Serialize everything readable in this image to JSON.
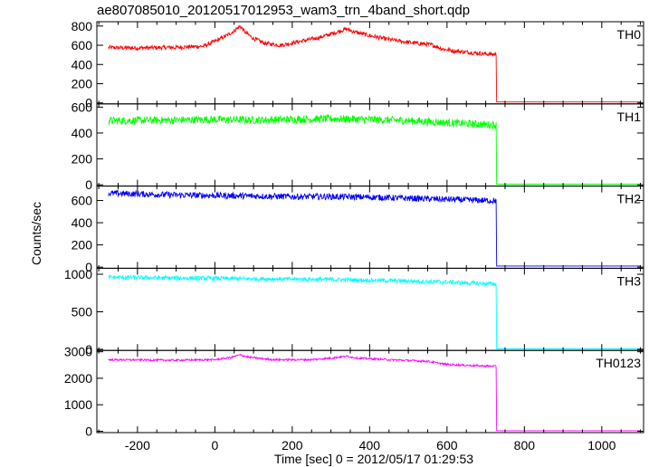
{
  "chart_data": {
    "type": "line",
    "title": "ae807085010_20120517012953_wam3_trn_4band_short.qdp",
    "xlabel": "Time [sec] 0 = 2012/05/17 01:29:53",
    "ylabel": "Counts/sec",
    "xlim": [
      -305,
      1108
    ],
    "xticks": [
      -200,
      0,
      200,
      400,
      600,
      800,
      1000
    ],
    "grid": false,
    "panels": [
      {
        "name": "TH0",
        "color": "#ff0000",
        "ylim": [
          -10,
          845
        ],
        "yticks": [
          0,
          200,
          400,
          600,
          800
        ],
        "noise": 22,
        "points": [
          [
            -275,
            575
          ],
          [
            -200,
            572
          ],
          [
            -100,
            578
          ],
          [
            -30,
            590
          ],
          [
            0,
            640
          ],
          [
            30,
            700
          ],
          [
            50,
            750
          ],
          [
            65,
            800
          ],
          [
            80,
            730
          ],
          [
            100,
            670
          ],
          [
            130,
            620
          ],
          [
            170,
            600
          ],
          [
            220,
            640
          ],
          [
            270,
            680
          ],
          [
            310,
            730
          ],
          [
            340,
            770
          ],
          [
            360,
            740
          ],
          [
            400,
            700
          ],
          [
            450,
            660
          ],
          [
            500,
            630
          ],
          [
            560,
            605
          ],
          [
            590,
            560
          ],
          [
            620,
            540
          ],
          [
            700,
            510
          ],
          [
            727,
            505
          ],
          [
            728,
            10
          ],
          [
            1100,
            10
          ]
        ]
      },
      {
        "name": "TH1",
        "color": "#00ff00",
        "ylim": [
          -10,
          625
        ],
        "yticks": [
          0,
          200,
          400,
          600
        ],
        "noise": 30,
        "points": [
          [
            -275,
            495
          ],
          [
            -100,
            500
          ],
          [
            0,
            505
          ],
          [
            100,
            500
          ],
          [
            200,
            505
          ],
          [
            300,
            510
          ],
          [
            400,
            505
          ],
          [
            500,
            495
          ],
          [
            600,
            480
          ],
          [
            700,
            465
          ],
          [
            727,
            462
          ],
          [
            728,
            5
          ],
          [
            1100,
            5
          ]
        ]
      },
      {
        "name": "TH2",
        "color": "#0000ff",
        "ylim": [
          -10,
          730
        ],
        "yticks": [
          0,
          200,
          400,
          600
        ],
        "noise": 28,
        "points": [
          [
            -275,
            665
          ],
          [
            -100,
            650
          ],
          [
            0,
            645
          ],
          [
            100,
            640
          ],
          [
            200,
            635
          ],
          [
            300,
            635
          ],
          [
            400,
            630
          ],
          [
            500,
            620
          ],
          [
            600,
            610
          ],
          [
            700,
            600
          ],
          [
            727,
            598
          ],
          [
            728,
            10
          ],
          [
            1100,
            10
          ]
        ]
      },
      {
        "name": "TH3",
        "color": "#00ffff",
        "ylim": [
          -15,
          1080
        ],
        "yticks": [
          0,
          500,
          1000
        ],
        "noise": 28,
        "points": [
          [
            -275,
            960
          ],
          [
            -100,
            950
          ],
          [
            0,
            945
          ],
          [
            100,
            940
          ],
          [
            200,
            935
          ],
          [
            300,
            930
          ],
          [
            400,
            920
          ],
          [
            500,
            910
          ],
          [
            600,
            895
          ],
          [
            700,
            875
          ],
          [
            727,
            870
          ],
          [
            728,
            5
          ],
          [
            1100,
            5
          ]
        ]
      },
      {
        "name": "TH0123",
        "color": "#ff00ff",
        "ylim": [
          -50,
          3050
        ],
        "yticks": [
          0,
          1000,
          2000,
          3000
        ],
        "noise": 35,
        "points": [
          [
            -275,
            2700
          ],
          [
            -100,
            2680
          ],
          [
            0,
            2700
          ],
          [
            40,
            2780
          ],
          [
            65,
            2880
          ],
          [
            90,
            2790
          ],
          [
            150,
            2700
          ],
          [
            250,
            2700
          ],
          [
            300,
            2760
          ],
          [
            340,
            2830
          ],
          [
            370,
            2760
          ],
          [
            450,
            2700
          ],
          [
            550,
            2640
          ],
          [
            600,
            2520
          ],
          [
            700,
            2460
          ],
          [
            727,
            2450
          ],
          [
            728,
            20
          ],
          [
            1100,
            20
          ]
        ]
      }
    ]
  }
}
